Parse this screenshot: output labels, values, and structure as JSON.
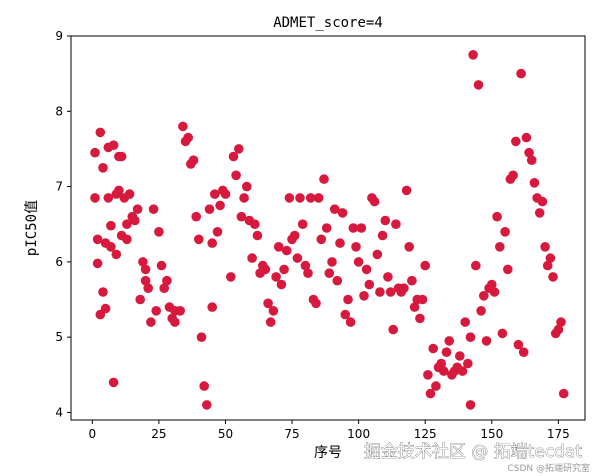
{
  "chart_data": {
    "type": "scatter",
    "title": "ADMET_score=4",
    "xlabel": "序号",
    "ylabel": "pIC50值",
    "xlim": [
      -8,
      185
    ],
    "ylim": [
      3.9,
      9.0
    ],
    "x_ticks": [
      0,
      25,
      50,
      75,
      100,
      125,
      150,
      175
    ],
    "x_tick_labels": [
      "0",
      "25",
      "50",
      "75",
      "100",
      "125",
      "150",
      "175"
    ],
    "y_ticks": [
      4,
      5,
      6,
      7,
      8,
      9
    ],
    "y_tick_labels": [
      "4",
      "5",
      "6",
      "7",
      "8",
      "9"
    ],
    "point_color": "#d7193e",
    "grid": false,
    "points": [
      [
        1,
        7.45
      ],
      [
        1,
        6.85
      ],
      [
        2,
        6.3
      ],
      [
        2,
        5.98
      ],
      [
        3,
        7.72
      ],
      [
        3,
        5.3
      ],
      [
        4,
        7.25
      ],
      [
        4,
        5.6
      ],
      [
        5,
        6.25
      ],
      [
        5,
        5.38
      ],
      [
        6,
        7.52
      ],
      [
        6,
        6.85
      ],
      [
        7,
        6.48
      ],
      [
        7,
        6.2
      ],
      [
        8,
        7.55
      ],
      [
        8,
        4.4
      ],
      [
        9,
        6.9
      ],
      [
        9,
        6.1
      ],
      [
        10,
        7.4
      ],
      [
        10,
        6.95
      ],
      [
        11,
        7.4
      ],
      [
        11,
        6.35
      ],
      [
        12,
        6.85
      ],
      [
        13,
        6.5
      ],
      [
        13,
        6.3
      ],
      [
        14,
        6.9
      ],
      [
        15,
        6.6
      ],
      [
        16,
        6.55
      ],
      [
        17,
        6.7
      ],
      [
        18,
        5.5
      ],
      [
        19,
        6.0
      ],
      [
        20,
        5.75
      ],
      [
        20,
        5.9
      ],
      [
        21,
        5.65
      ],
      [
        22,
        5.2
      ],
      [
        23,
        6.7
      ],
      [
        24,
        5.35
      ],
      [
        25,
        6.4
      ],
      [
        26,
        5.95
      ],
      [
        27,
        5.65
      ],
      [
        28,
        5.75
      ],
      [
        29,
        5.4
      ],
      [
        30,
        5.25
      ],
      [
        31,
        5.35
      ],
      [
        31,
        5.2
      ],
      [
        33,
        5.35
      ],
      [
        34,
        7.8
      ],
      [
        35,
        7.6
      ],
      [
        36,
        7.65
      ],
      [
        37,
        7.3
      ],
      [
        38,
        7.35
      ],
      [
        39,
        6.6
      ],
      [
        40,
        6.3
      ],
      [
        41,
        5.0
      ],
      [
        42,
        4.35
      ],
      [
        43,
        4.1
      ],
      [
        44,
        6.7
      ],
      [
        45,
        5.4
      ],
      [
        45,
        6.25
      ],
      [
        46,
        6.9
      ],
      [
        47,
        6.4
      ],
      [
        48,
        6.75
      ],
      [
        49,
        6.95
      ],
      [
        50,
        6.9
      ],
      [
        52,
        5.8
      ],
      [
        53,
        7.4
      ],
      [
        54,
        7.15
      ],
      [
        55,
        7.5
      ],
      [
        56,
        6.6
      ],
      [
        57,
        6.85
      ],
      [
        58,
        7.0
      ],
      [
        59,
        6.55
      ],
      [
        60,
        6.05
      ],
      [
        61,
        6.5
      ],
      [
        62,
        6.35
      ],
      [
        63,
        5.85
      ],
      [
        64,
        5.95
      ],
      [
        65,
        5.9
      ],
      [
        66,
        5.45
      ],
      [
        67,
        5.2
      ],
      [
        68,
        5.35
      ],
      [
        69,
        5.8
      ],
      [
        70,
        6.2
      ],
      [
        71,
        5.7
      ],
      [
        72,
        5.9
      ],
      [
        73,
        6.15
      ],
      [
        74,
        6.85
      ],
      [
        75,
        6.3
      ],
      [
        76,
        6.35
      ],
      [
        77,
        6.05
      ],
      [
        78,
        6.85
      ],
      [
        79,
        6.5
      ],
      [
        80,
        5.95
      ],
      [
        81,
        5.85
      ],
      [
        82,
        6.85
      ],
      [
        83,
        5.5
      ],
      [
        84,
        5.45
      ],
      [
        85,
        6.85
      ],
      [
        86,
        6.3
      ],
      [
        87,
        7.1
      ],
      [
        88,
        6.45
      ],
      [
        89,
        5.85
      ],
      [
        90,
        6.0
      ],
      [
        91,
        6.7
      ],
      [
        92,
        5.75
      ],
      [
        93,
        6.25
      ],
      [
        94,
        6.65
      ],
      [
        95,
        5.3
      ],
      [
        96,
        5.5
      ],
      [
        97,
        5.2
      ],
      [
        98,
        6.45
      ],
      [
        99,
        6.2
      ],
      [
        100,
        6.0
      ],
      [
        101,
        6.45
      ],
      [
        102,
        5.55
      ],
      [
        103,
        5.9
      ],
      [
        104,
        5.7
      ],
      [
        105,
        6.85
      ],
      [
        106,
        6.8
      ],
      [
        107,
        6.1
      ],
      [
        108,
        5.6
      ],
      [
        109,
        6.35
      ],
      [
        110,
        6.55
      ],
      [
        111,
        5.8
      ],
      [
        112,
        5.6
      ],
      [
        113,
        5.1
      ],
      [
        114,
        6.5
      ],
      [
        115,
        5.65
      ],
      [
        116,
        5.6
      ],
      [
        117,
        5.65
      ],
      [
        118,
        6.95
      ],
      [
        119,
        6.2
      ],
      [
        120,
        5.75
      ],
      [
        121,
        5.4
      ],
      [
        122,
        5.5
      ],
      [
        123,
        5.25
      ],
      [
        124,
        5.5
      ],
      [
        125,
        5.95
      ],
      [
        126,
        4.5
      ],
      [
        127,
        4.25
      ],
      [
        128,
        4.85
      ],
      [
        129,
        4.35
      ],
      [
        130,
        4.6
      ],
      [
        131,
        4.65
      ],
      [
        132,
        4.55
      ],
      [
        133,
        4.8
      ],
      [
        134,
        4.95
      ],
      [
        135,
        4.5
      ],
      [
        136,
        4.55
      ],
      [
        137,
        4.6
      ],
      [
        138,
        4.75
      ],
      [
        139,
        4.55
      ],
      [
        140,
        5.2
      ],
      [
        141,
        4.65
      ],
      [
        142,
        5.0
      ],
      [
        142,
        4.1
      ],
      [
        143,
        8.75
      ],
      [
        144,
        5.95
      ],
      [
        145,
        8.35
      ],
      [
        146,
        5.35
      ],
      [
        147,
        5.55
      ],
      [
        148,
        4.95
      ],
      [
        149,
        5.65
      ],
      [
        150,
        5.7
      ],
      [
        151,
        5.6
      ],
      [
        152,
        6.6
      ],
      [
        153,
        6.2
      ],
      [
        154,
        5.05
      ],
      [
        155,
        6.4
      ],
      [
        156,
        5.9
      ],
      [
        157,
        7.1
      ],
      [
        158,
        7.15
      ],
      [
        159,
        7.6
      ],
      [
        160,
        4.9
      ],
      [
        161,
        8.5
      ],
      [
        162,
        4.8
      ],
      [
        163,
        7.65
      ],
      [
        164,
        7.45
      ],
      [
        165,
        7.35
      ],
      [
        166,
        7.05
      ],
      [
        167,
        6.85
      ],
      [
        168,
        6.65
      ],
      [
        169,
        6.8
      ],
      [
        170,
        6.2
      ],
      [
        171,
        5.95
      ],
      [
        172,
        6.05
      ],
      [
        173,
        5.8
      ],
      [
        174,
        5.05
      ],
      [
        175,
        5.1
      ],
      [
        176,
        5.2
      ],
      [
        177,
        4.25
      ]
    ]
  },
  "watermark": {
    "main": "掘金技术社区 @ 拓端tecdat",
    "sub": "CSDN @拓端研究室"
  }
}
